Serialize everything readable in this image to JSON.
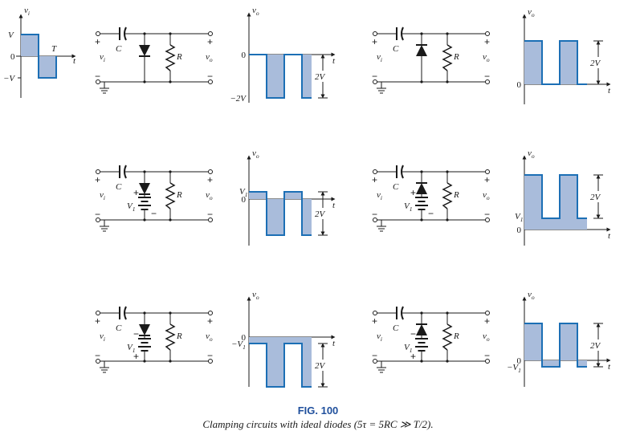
{
  "caption": {
    "title": "FIG. 100",
    "text": "Clamping circuits with ideal diodes (5τ = 5RC ≫ T/2)."
  },
  "colors": {
    "fill": "#a9bcdb",
    "stroke": "#1c6fb5",
    "ink": "#1a1a1a",
    "caption_title": "#1f4f9c"
  },
  "input": {
    "v": "V",
    "neg_v": "−V",
    "zero": "0",
    "t": "t",
    "T": "T",
    "axis": "v",
    "axis_sub": "i"
  },
  "circuit": {
    "plus": "+",
    "minus": "−",
    "c": "C",
    "r": "R",
    "vi": "v",
    "vi_sub": "i",
    "vo": "v",
    "vo_sub": "o",
    "v1": "V",
    "v1_sub": "1"
  },
  "output": {
    "axis": "v",
    "axis_sub": "o",
    "t": "t",
    "zero": "0",
    "two_v": "2V",
    "neg_2v": "−2V",
    "v1": "V",
    "v1_sub": "1",
    "neg_v1": "−V",
    "neg_v1_sub": "1"
  },
  "panels": [
    {
      "id": "a",
      "diode": "down",
      "battery": "none",
      "output": "neg-2v"
    },
    {
      "id": "b",
      "diode": "up",
      "battery": "none",
      "output": "pos-2v"
    },
    {
      "id": "c",
      "diode": "down",
      "battery": "plus-top",
      "output": "v1-offset"
    },
    {
      "id": "d",
      "diode": "up",
      "battery": "plus-top",
      "output": "v1-raised"
    },
    {
      "id": "e",
      "diode": "down",
      "battery": "plus-bottom",
      "output": "neg-v1-offset"
    },
    {
      "id": "f",
      "diode": "up",
      "battery": "plus-bottom",
      "output": "neg-v1-raised"
    }
  ]
}
